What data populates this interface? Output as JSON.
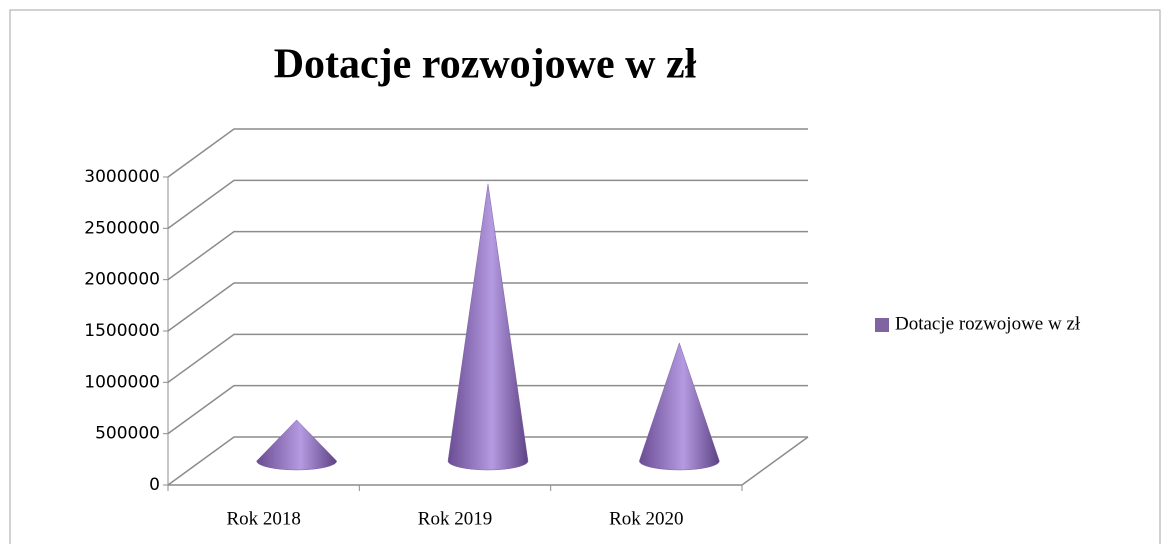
{
  "chart_data": {
    "type": "cone3d",
    "title": "Dotacje rozwojowe w zł",
    "categories": [
      "Rok 2018",
      "Rok 2019",
      "Rok 2020"
    ],
    "series": [
      {
        "name": "Dotacje rozwojowe w zł",
        "color": "#8064a2",
        "values": [
          400000,
          2700000,
          1150000
        ]
      }
    ],
    "ylim": [
      0,
      3000000
    ],
    "yticks": [
      0,
      500000,
      1000000,
      1500000,
      2000000,
      2500000,
      3000000
    ],
    "grid": true,
    "legend": "right"
  }
}
